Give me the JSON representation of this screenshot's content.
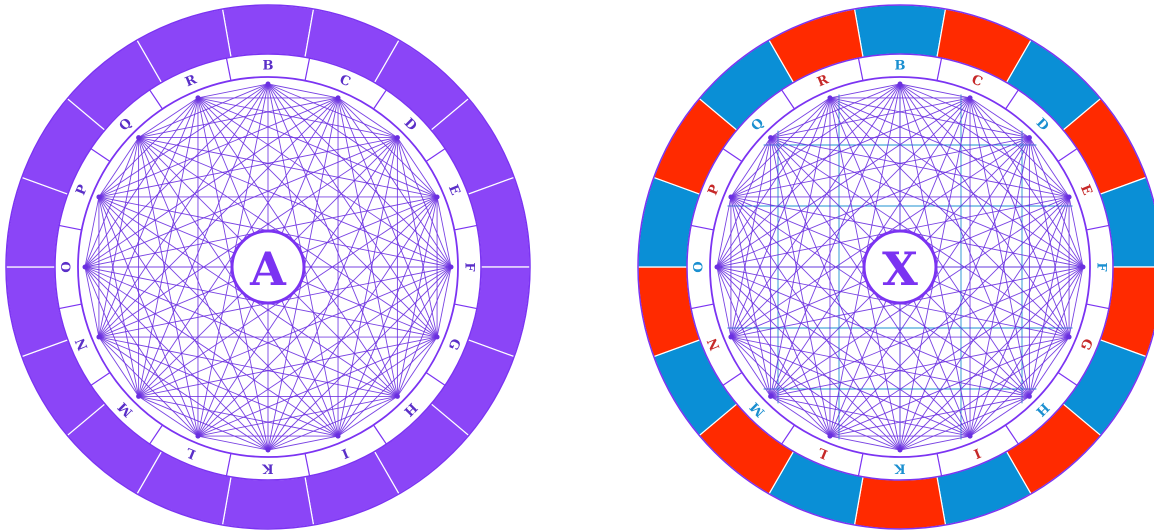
{
  "diagrams": [
    {
      "id": "left",
      "center_label": "A",
      "colors": {
        "accent": "#7b33f2",
        "line": "#6a2fe0",
        "grid_line": "",
        "segment_colors": [
          "#8b45f7"
        ],
        "label_colors": [
          "#5a2fc8"
        ]
      },
      "nodes": [
        "B",
        "C",
        "D",
        "E",
        "F",
        "G",
        "H",
        "I",
        "K",
        "L",
        "M",
        "N",
        "O",
        "P",
        "Q",
        "R"
      ],
      "show_grid": false
    },
    {
      "id": "right",
      "center_label": "X",
      "colors": {
        "accent": "#7b33f2",
        "line": "#6a2fe0",
        "grid_line": "#1e90d0",
        "segment_colors": [
          "#0a8fd6",
          "#ff2a00"
        ],
        "label_colors": [
          "#1a8fd0",
          "#c62828"
        ]
      },
      "nodes": [
        "B",
        "C",
        "D",
        "E",
        "F",
        "G",
        "H",
        "I",
        "K",
        "L",
        "M",
        "N",
        "O",
        "P",
        "Q",
        "R"
      ],
      "show_grid": true
    }
  ]
}
